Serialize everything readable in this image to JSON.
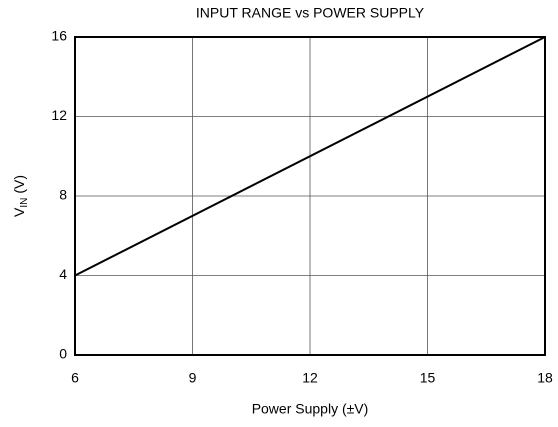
{
  "chart_data": {
    "type": "line",
    "title": "INPUT RANGE vs POWER SUPPLY",
    "xlabel": "Power Supply (±V)",
    "ylabel": {
      "text": "V",
      "subscript": "IN",
      "suffix": "(V)"
    },
    "x": [
      6,
      18
    ],
    "series": [
      {
        "name": null,
        "color": "#000000",
        "values": [
          4,
          16
        ]
      }
    ],
    "xlim": [
      6,
      18
    ],
    "xticks": [
      6,
      9,
      12,
      15,
      18
    ],
    "ylim": [
      0,
      16
    ],
    "yticks": [
      0,
      4,
      8,
      12,
      16
    ],
    "grid": true
  }
}
